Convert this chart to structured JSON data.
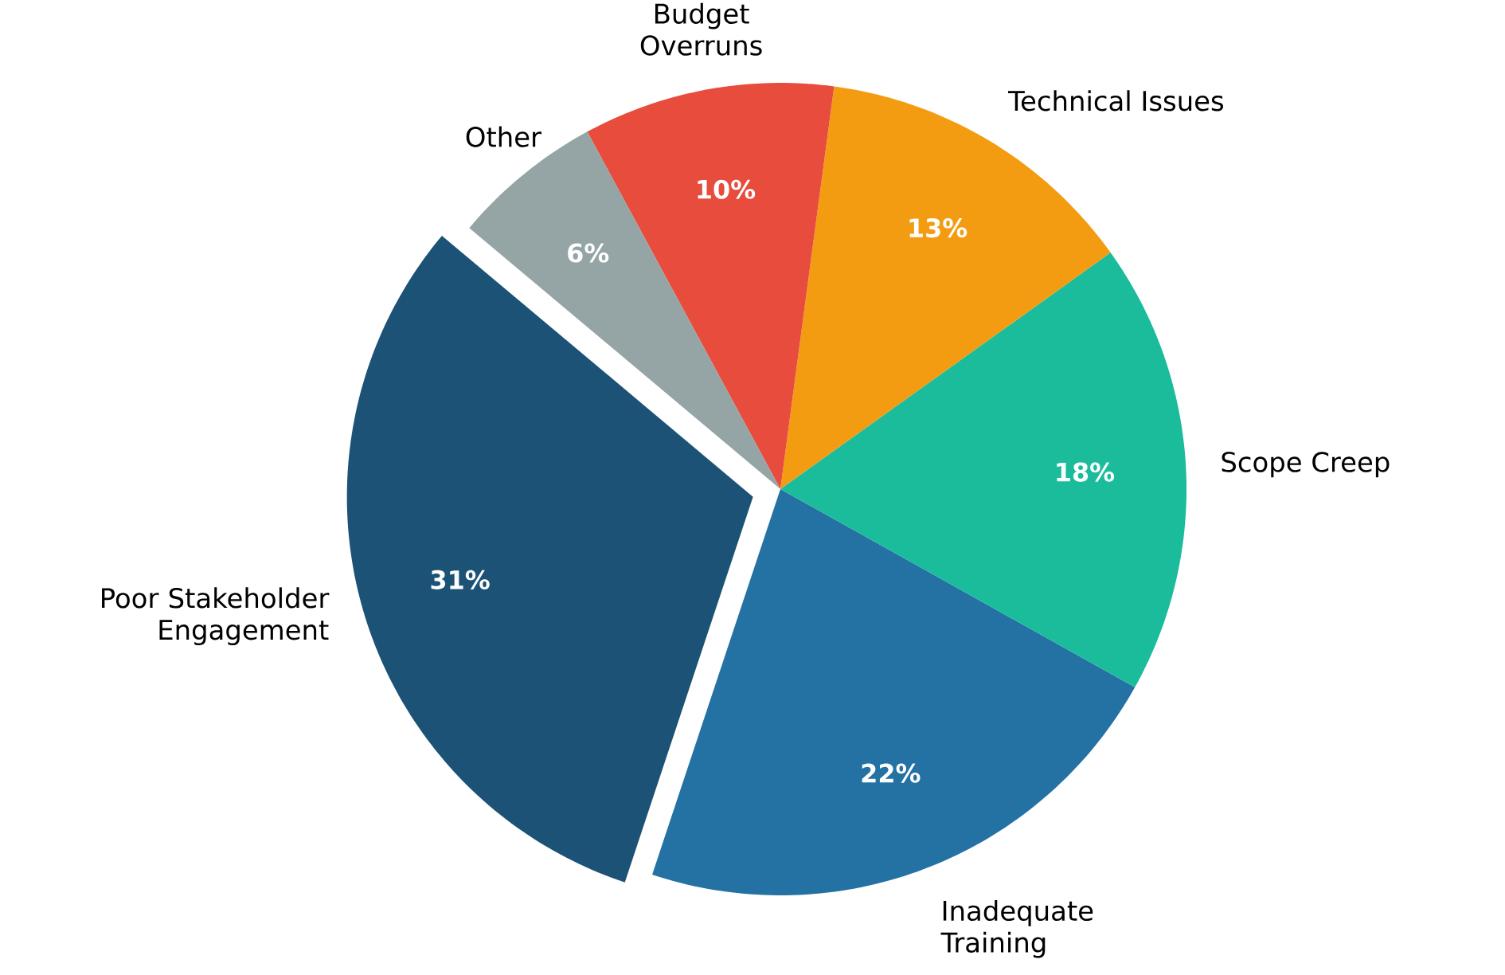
{
  "chart_data": {
    "type": "pie",
    "categories": [
      "Poor Stakeholder Engagement",
      "Inadequate Training",
      "Scope Creep",
      "Technical Issues",
      "Budget Overruns",
      "Other"
    ],
    "values": [
      31,
      22,
      18,
      13,
      10,
      6
    ],
    "colors": [
      "#1b5276",
      "#2471a3",
      "#1abc9c",
      "#f39c12",
      "#e74c3c",
      "#95a5a6"
    ],
    "value_labels": [
      "31%",
      "22%",
      "18%",
      "13%",
      "10%",
      "6%"
    ]
  }
}
